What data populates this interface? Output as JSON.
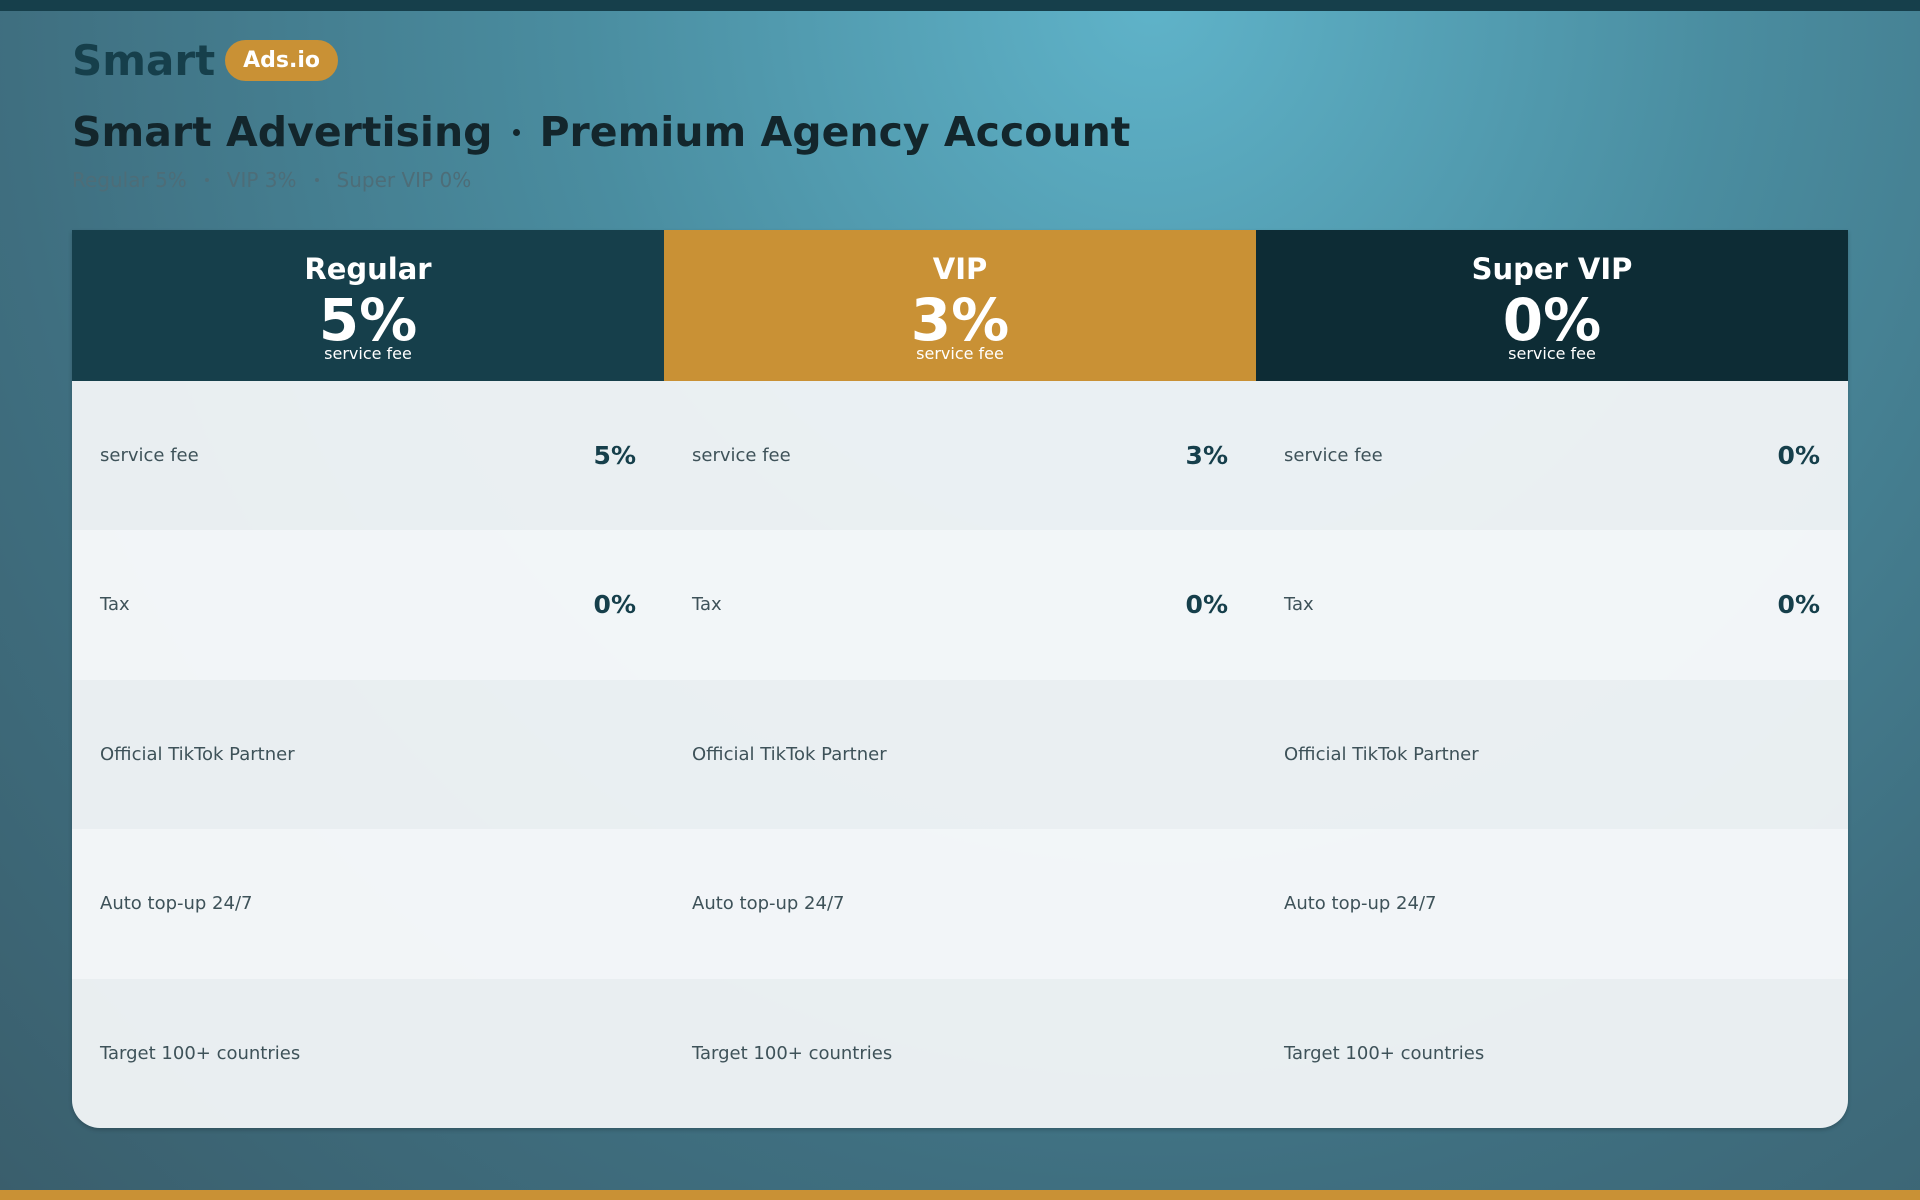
{
  "header": {
    "brand": "Smart",
    "badge": "Ads.io",
    "title": [
      "Smart Advertising",
      "Premium Agency Account"
    ],
    "subtitle": [
      "Regular 5%",
      "VIP 3%",
      "Super VIP 0%"
    ]
  },
  "plans": [
    {
      "name": "Regular",
      "fee": "5%",
      "fee_label": "service fee",
      "color": "#163f4b",
      "rows": [
        {
          "label": "service fee",
          "value": "5%"
        },
        {
          "label": "Tax",
          "value": "0%"
        },
        {
          "label": "Official TikTok Partner"
        },
        {
          "label": "Auto top-up 24/7"
        },
        {
          "label": "Target 100+ countries"
        }
      ]
    },
    {
      "name": "VIP",
      "fee": "3%",
      "fee_label": "service fee",
      "color": "#c99135",
      "rows": [
        {
          "label": "service fee",
          "value": "3%"
        },
        {
          "label": "Tax",
          "value": "0%"
        },
        {
          "label": "Official TikTok Partner"
        },
        {
          "label": "Auto top-up 24/7"
        },
        {
          "label": "Target 100+ countries"
        }
      ]
    },
    {
      "name": "Super VIP",
      "fee": "0%",
      "fee_label": "service fee",
      "color": "#0d2c35",
      "rows": [
        {
          "label": "service fee",
          "value": "0%"
        },
        {
          "label": "Tax",
          "value": "0%"
        },
        {
          "label": "Official TikTok Partner"
        },
        {
          "label": "Auto top-up 24/7"
        },
        {
          "label": "Target 100+ countries"
        }
      ]
    }
  ]
}
